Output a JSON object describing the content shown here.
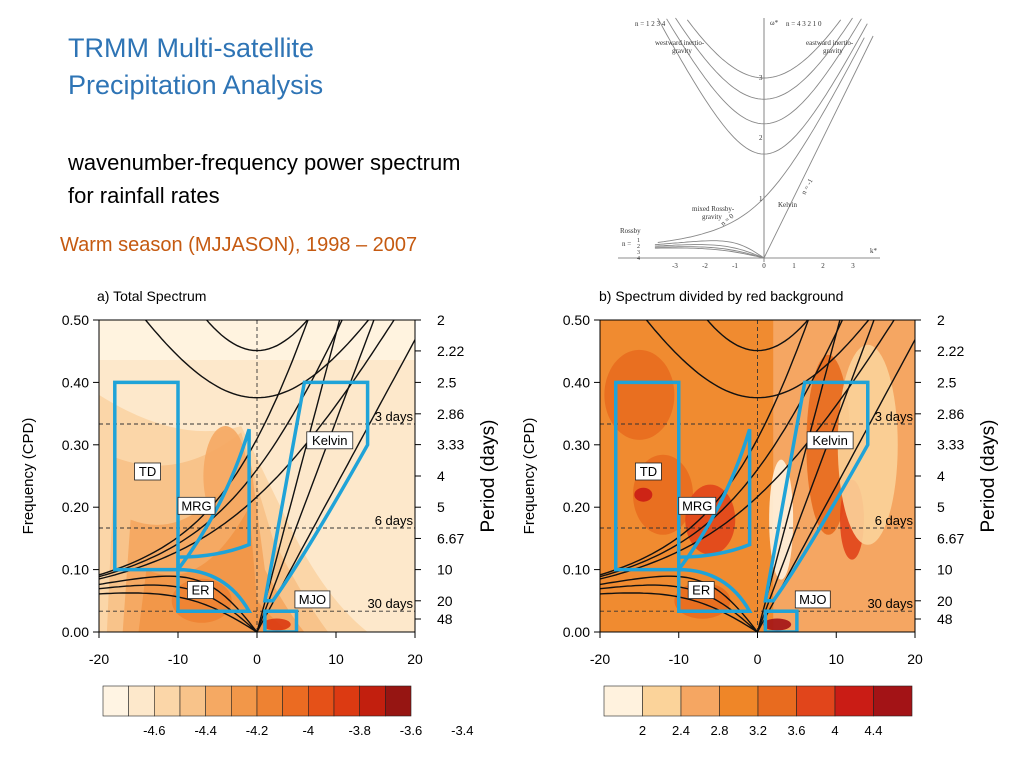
{
  "slide": {
    "title_lines": [
      "TRMM Multi-satellite",
      "Precipitation Analysis"
    ],
    "subtitle_lines": [
      "wavenumber-frequency power spectrum",
      "for rainfall rates"
    ],
    "season": "Warm season (MJJASON), 1998 – 2007"
  },
  "dispersion_diagram": {
    "n_west": "n = 1  2  3  4",
    "n_east": "n = 4  3  2  1  0",
    "w_label": "ω*",
    "k_label": "k*",
    "westward_label": [
      "westward inertio-",
      "gravity"
    ],
    "eastward_label": [
      "eastward inertio-",
      "gravity"
    ],
    "mrg_label": [
      "mixed Rossby-",
      "gravity"
    ],
    "kelvin_label": "Kelvin",
    "rossby_label": "Rossby",
    "n_rossby": "n =",
    "n_rossby_vals": [
      "1",
      "2",
      "3",
      "4"
    ],
    "n_zero": "n = 0",
    "n_minus1": "n = -1",
    "x_ticks": [
      "-3",
      "-2",
      "-1",
      "0",
      "1",
      "2",
      "3"
    ],
    "y_ticks": [
      "1",
      "2",
      "3"
    ]
  },
  "panels": [
    {
      "title": "a) Total Spectrum",
      "colors": [
        "#fff4e3",
        "#fde8cb",
        "#fbd6a8",
        "#f8c38a",
        "#f5a963",
        "#f29749",
        "#ee8232",
        "#eb6b22",
        "#e55118",
        "#dc3a12",
        "#c21f0e",
        "#961512"
      ],
      "colorbar_labels": [
        "-4.6",
        "-4.4",
        "-4.2",
        "-4",
        "-3.8",
        "-3.6",
        "-3.4"
      ]
    },
    {
      "title": "b) Spectrum divided by red background",
      "colors": [
        "#fff2de",
        "#fbd39a",
        "#f5a662",
        "#ef8628",
        "#e86b1f",
        "#e1451b",
        "#ca1c15",
        "#a31316"
      ],
      "colorbar_labels": [
        "2",
        "2.4",
        "2.8",
        "3.2",
        "3.6",
        "4",
        "4.4"
      ]
    }
  ],
  "axes": {
    "y_ticks": [
      "0.00",
      "0.10",
      "0.20",
      "0.30",
      "0.40",
      "0.50"
    ],
    "x_ticks": [
      "-20",
      "-10",
      "0",
      "10",
      "20"
    ],
    "period_ticks": [
      "2",
      "2.22",
      "2.5",
      "2.86",
      "3.33",
      "4",
      "5",
      "6.67",
      "10",
      "20",
      "48"
    ],
    "ylabel_left": "Frequency (CPD)",
    "ylabel_right": "Period (days)",
    "ref_lines": [
      "3 days",
      "6 days",
      "30 days"
    ]
  },
  "regions": {
    "td": "TD",
    "mrg": "MRG",
    "kelvin": "Kelvin",
    "er": "ER",
    "mjo": "MJO"
  }
}
